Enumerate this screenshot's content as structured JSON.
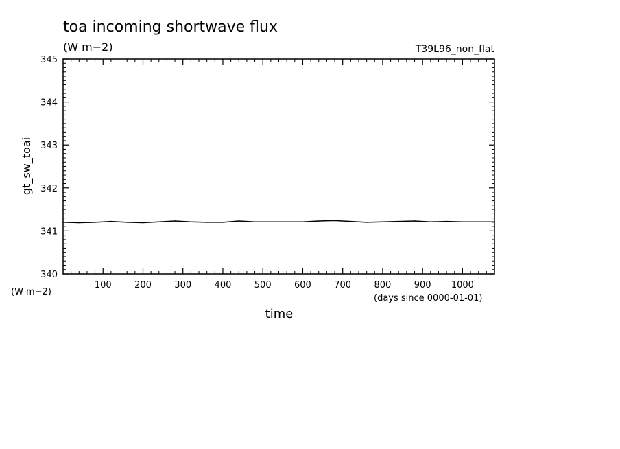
{
  "chart_data": {
    "type": "line",
    "title": "toa incoming shortwave flux",
    "subtitle": "(W m−2)",
    "run_label": "T39L96_non_flat",
    "ylabel": "gt_sw_toai",
    "yunit": "(W m−2)",
    "xlabel": "time",
    "xunit": "(days since 0000-01-01)",
    "xlim": [
      0,
      1080
    ],
    "ylim": [
      340,
      345
    ],
    "x_ticks": [
      100,
      200,
      300,
      400,
      500,
      600,
      700,
      800,
      900,
      1000
    ],
    "y_ticks": [
      340,
      341,
      342,
      343,
      344,
      345
    ],
    "series": [
      {
        "x": [
          0,
          40,
          80,
          120,
          160,
          200,
          240,
          280,
          320,
          360,
          400,
          440,
          480,
          520,
          560,
          600,
          640,
          680,
          720,
          760,
          800,
          840,
          880,
          920,
          960,
          1000,
          1040,
          1080
        ],
        "y": [
          341.2,
          341.19,
          341.2,
          341.22,
          341.2,
          341.19,
          341.21,
          341.23,
          341.21,
          341.2,
          341.2,
          341.23,
          341.21,
          341.21,
          341.21,
          341.21,
          341.23,
          341.24,
          341.22,
          341.2,
          341.21,
          341.22,
          341.23,
          341.21,
          341.22,
          341.21,
          341.21,
          341.21
        ]
      }
    ]
  }
}
